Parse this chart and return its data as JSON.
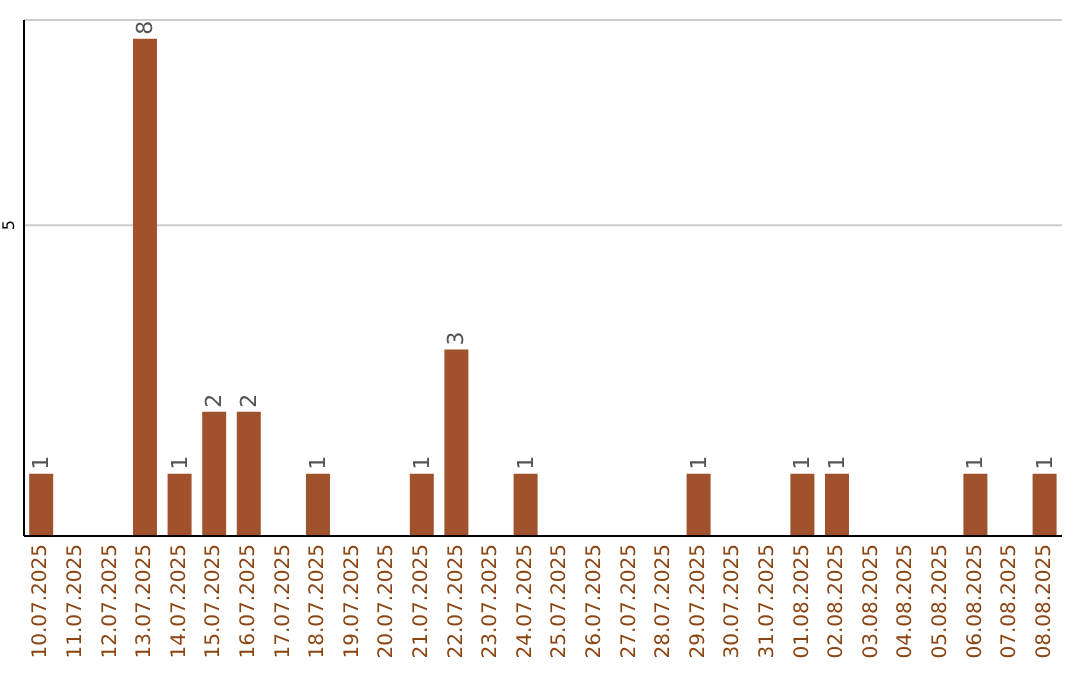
{
  "chart_data": {
    "type": "bar",
    "categories": [
      "10.07.2025",
      "11.07.2025",
      "12.07.2025",
      "13.07.2025",
      "14.07.2025",
      "15.07.2025",
      "16.07.2025",
      "17.07.2025",
      "18.07.2025",
      "19.07.2025",
      "20.07.2025",
      "21.07.2025",
      "22.07.2025",
      "23.07.2025",
      "24.07.2025",
      "25.07.2025",
      "26.07.2025",
      "27.07.2025",
      "28.07.2025",
      "29.07.2025",
      "30.07.2025",
      "31.07.2025",
      "01.08.2025",
      "02.08.2025",
      "03.08.2025",
      "04.08.2025",
      "05.08.2025",
      "06.08.2025",
      "07.08.2025",
      "08.08.2025"
    ],
    "values": [
      1,
      0,
      0,
      8,
      1,
      2,
      2,
      0,
      1,
      0,
      0,
      1,
      3,
      0,
      1,
      0,
      0,
      0,
      0,
      1,
      0,
      0,
      1,
      1,
      0,
      0,
      0,
      1,
      0,
      1
    ],
    "value_labels": [
      "1",
      null,
      null,
      "8",
      "1",
      "2",
      "2",
      null,
      "1",
      null,
      null,
      "1",
      "3",
      null,
      "1",
      null,
      null,
      null,
      null,
      "1",
      null,
      null,
      "1",
      "1",
      null,
      null,
      null,
      "1",
      null,
      "1"
    ],
    "color": "#a0522d",
    "ylim": [
      0,
      8.3
    ],
    "yticks": [
      5
    ],
    "grid": "y"
  }
}
